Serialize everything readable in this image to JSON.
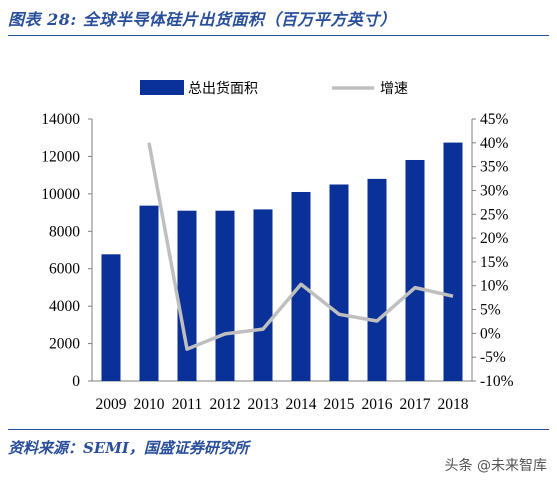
{
  "header": {
    "title": "图表 28:  全球半导体硅片出货面积（百万平方英寸）"
  },
  "footer": {
    "source": "资料来源：SEMI，国盛证券研究所",
    "watermark": "头条 @未来智库"
  },
  "colors": {
    "accent": "#2a4f9a",
    "bar": "#0a3197",
    "line": "#bfbfbf"
  },
  "chart_data": {
    "type": "bar",
    "categories": [
      "2009",
      "2010",
      "2011",
      "2012",
      "2013",
      "2014",
      "2015",
      "2016",
      "2017",
      "2018"
    ],
    "series": [
      {
        "name": "总出货面积",
        "type": "bar",
        "axis": "left",
        "values": [
          6770,
          9370,
          9100,
          9100,
          9170,
          10100,
          10500,
          10800,
          11810,
          12740
        ]
      },
      {
        "name": "增速",
        "type": "line",
        "axis": "right",
        "values": [
          null,
          40.0,
          -3.3,
          -0.1,
          0.9,
          10.3,
          4.0,
          2.6,
          9.6,
          7.8
        ]
      }
    ],
    "y_left": {
      "min": 0,
      "max": 14000,
      "step": 2000,
      "ticks": [
        "0",
        "2000",
        "4000",
        "6000",
        "8000",
        "10000",
        "12000",
        "14000"
      ]
    },
    "y_right": {
      "min": -10,
      "max": 45,
      "step": 5,
      "ticks": [
        "-10%",
        "-5%",
        "0%",
        "5%",
        "10%",
        "15%",
        "20%",
        "25%",
        "30%",
        "35%",
        "40%",
        "45%"
      ]
    },
    "legend_position": "top-center",
    "grid": false
  }
}
